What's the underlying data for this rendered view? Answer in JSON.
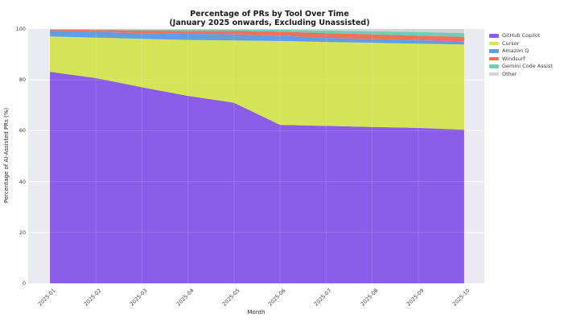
{
  "title": {
    "line1": "Percentage of PRs by Tool Over Time",
    "line2": "(January 2025 onwards, Excluding Unassisted)"
  },
  "chart_data": {
    "type": "area",
    "stacked": true,
    "title": "Percentage of PRs by Tool Over Time (January 2025 onwards, Excluding Unassisted)",
    "xlabel": "Month",
    "ylabel": "Percentage of AI-Assisted PRs (%)",
    "x": [
      "2025-01",
      "2025-02",
      "2025-03",
      "2025-04",
      "2025-05",
      "2025-06",
      "2025-07",
      "2025-08",
      "2025-09",
      "2025-10"
    ],
    "series": [
      {
        "name": "GitHub Copilot",
        "color": "#8b5ce8",
        "values": [
          83.2,
          80.7,
          77.1,
          73.7,
          71.0,
          62.3,
          61.9,
          61.5,
          61.1,
          60.4
        ]
      },
      {
        "name": "Cursor",
        "color": "#d5e356",
        "values": [
          13.9,
          15.9,
          19.0,
          22.0,
          24.5,
          33.0,
          33.0,
          33.1,
          33.1,
          33.5
        ]
      },
      {
        "name": "Amazon Q",
        "color": "#5f9de5",
        "values": [
          2.3,
          2.3,
          2.3,
          2.4,
          2.4,
          2.1,
          1.6,
          1.4,
          1.4,
          1.3
        ]
      },
      {
        "name": "Windsurf",
        "color": "#f0705a",
        "values": [
          0.4,
          0.7,
          1.0,
          1.2,
          1.4,
          1.6,
          1.9,
          1.9,
          1.8,
          1.7
        ]
      },
      {
        "name": "Gemini Code Assist",
        "color": "#6dcfb5",
        "values": [
          0.1,
          0.2,
          0.3,
          0.4,
          0.4,
          0.7,
          1.0,
          1.2,
          1.4,
          1.5
        ]
      },
      {
        "name": "Other",
        "color": "#d3d3d3",
        "values": [
          0.1,
          0.2,
          0.3,
          0.3,
          0.3,
          0.3,
          0.6,
          0.9,
          1.2,
          1.6
        ]
      }
    ],
    "ylim": [
      0,
      100
    ],
    "yticks": [
      0,
      20,
      40,
      60,
      80,
      100
    ],
    "grid": true,
    "plot_bg": "#eaeaf2",
    "legend_position": "outside-upper-right"
  }
}
